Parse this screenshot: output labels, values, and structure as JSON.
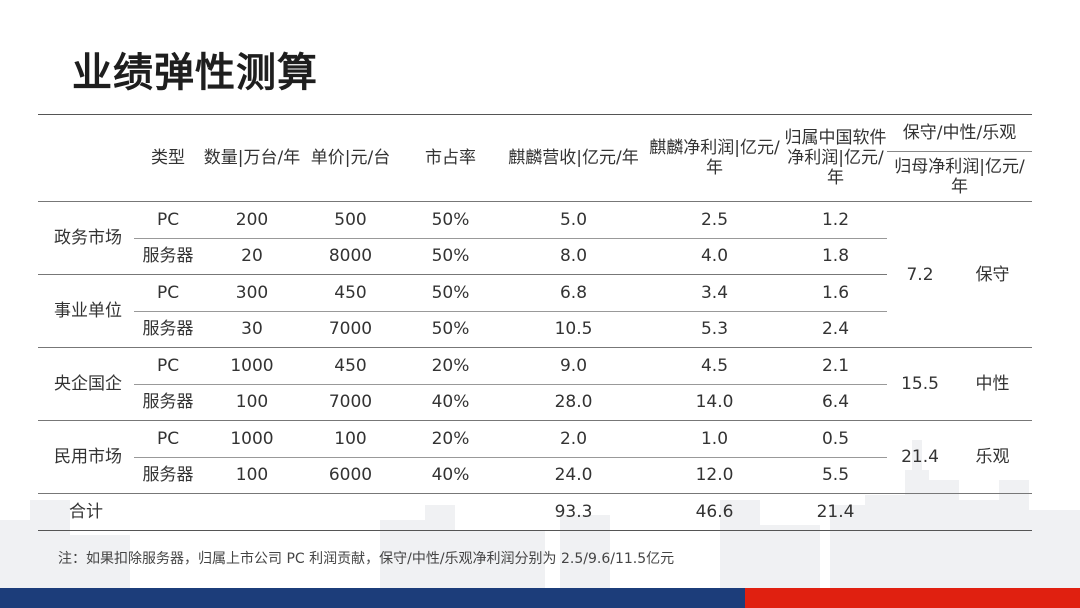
{
  "title": "业绩弹性测算",
  "headers": {
    "type": "类型",
    "quantity": "数量|万台/年",
    "price": "单价|元/台",
    "share": "市占率",
    "revenue": "麒麟营收|亿元/年",
    "net_profit": "麒麟净利润|亿元/年",
    "attributed": "归属中国软件净利润|亿元/年",
    "scenario": "保守/中性/乐观",
    "parent_profit": "归母净利润|亿元/年"
  },
  "rows": [
    {
      "region": "政务市场",
      "type": "PC",
      "qty": "200",
      "price": "500",
      "share": "50%",
      "revenue": "5.0",
      "profit": "2.5",
      "attr": "1.2"
    },
    {
      "region": "",
      "type": "服务器",
      "qty": "20",
      "price": "8000",
      "share": "50%",
      "revenue": "8.0",
      "profit": "4.0",
      "attr": "1.8"
    },
    {
      "region": "事业单位",
      "type": "PC",
      "qty": "300",
      "price": "450",
      "share": "50%",
      "revenue": "6.8",
      "profit": "3.4",
      "attr": "1.6"
    },
    {
      "region": "",
      "type": "服务器",
      "qty": "30",
      "price": "7000",
      "share": "50%",
      "revenue": "10.5",
      "profit": "5.3",
      "attr": "2.4"
    },
    {
      "region": "央企国企",
      "type": "PC",
      "qty": "1000",
      "price": "450",
      "share": "20%",
      "revenue": "9.0",
      "profit": "4.5",
      "attr": "2.1"
    },
    {
      "region": "",
      "type": "服务器",
      "qty": "100",
      "price": "7000",
      "share": "40%",
      "revenue": "28.0",
      "profit": "14.0",
      "attr": "6.4"
    },
    {
      "region": "民用市场",
      "type": "PC",
      "qty": "1000",
      "price": "100",
      "share": "20%",
      "revenue": "2.0",
      "profit": "1.0",
      "attr": "0.5"
    },
    {
      "region": "",
      "type": "服务器",
      "qty": "100",
      "price": "6000",
      "share": "40%",
      "revenue": "24.0",
      "profit": "12.0",
      "attr": "5.5"
    }
  ],
  "scenarios": [
    {
      "value": "7.2",
      "label": "保守"
    },
    {
      "value": "15.5",
      "label": "中性"
    },
    {
      "value": "21.4",
      "label": "乐观"
    }
  ],
  "total": {
    "label": "合计",
    "revenue": "93.3",
    "profit": "46.6",
    "attr": "21.4"
  },
  "note": "注：如果扣除服务器，归属上市公司 PC 利润贡献，保守/中性/乐观净利润分别为 2.5/9.6/11.5亿元",
  "colors": {
    "bar_blue": "#1c3d7a",
    "bar_red": "#e02010",
    "skyline": "#f0f1f3"
  }
}
